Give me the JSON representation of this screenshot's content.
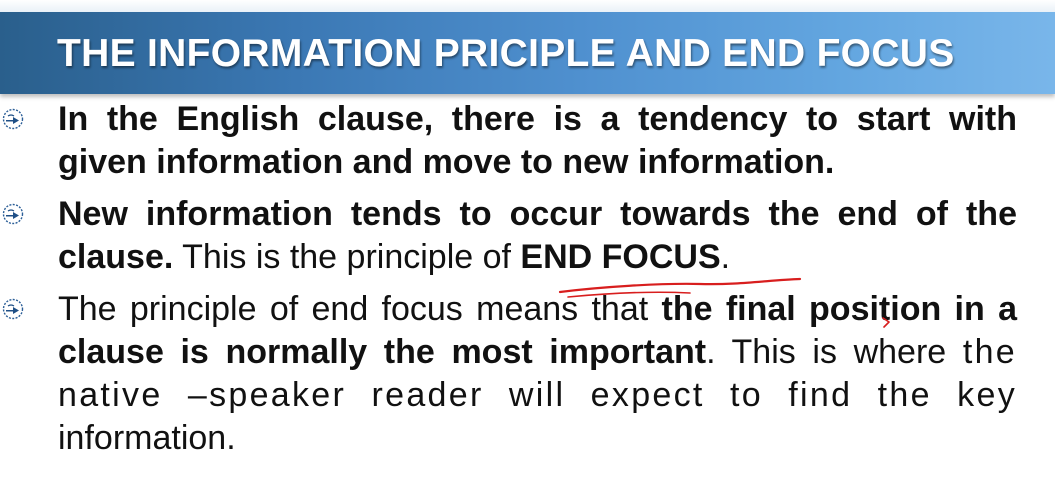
{
  "slide": {
    "title": "THE INFORMATION PRICIPLE AND END FOCUS",
    "icon_name": "pointing-hand-icon",
    "colors": {
      "title_bar_start": "#2a5f8c",
      "title_bar_end": "#79b6ea",
      "title_text": "#ffffff",
      "body_text": "#111111",
      "pen_annotation": "#d81e1e"
    },
    "bullets": [
      {
        "text": "In the English clause, there is a tendency to start with given information and move to new information."
      },
      {
        "part1_bold": "New information tends to occur towards the end of the clause.",
        "part2": " This is the principle of ",
        "part3_bold": "END FOCUS",
        "part4": "."
      },
      {
        "part1": "The principle of end focus means that ",
        "part2_bold": "the final position in a clause is normally the most important",
        "part3": ". This is where ",
        "part4": "the native –speaker reader will expect to find the key",
        "part5": " information."
      }
    ]
  }
}
